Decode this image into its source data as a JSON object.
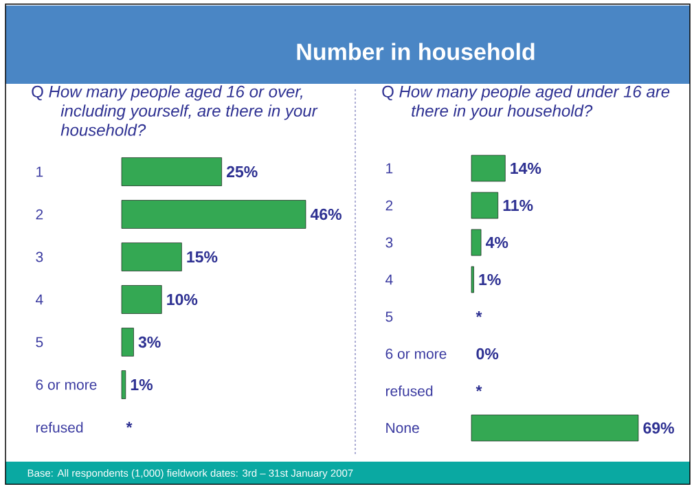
{
  "chart_data": [
    {
      "type": "bar",
      "orientation": "horizontal",
      "title": "Number in household",
      "subtitle": "Q *How many people aged 16 or over, including yourself, are there in your household?*",
      "categories": [
        "1",
        "2",
        "3",
        "4",
        "5",
        "6 or more",
        "refused"
      ],
      "values": [
        25,
        46,
        15,
        10,
        3,
        1,
        null
      ],
      "value_labels": [
        "25%",
        "46%",
        "15%",
        "10%",
        "3%",
        "1%",
        "*"
      ],
      "color": "#34a853",
      "tick_labels": "y",
      "annotations": [
        "Base: All respondents (1,000) fieldwork dates: 3rd – 31st January 2007"
      ]
    },
    {
      "type": "bar",
      "orientation": "horizontal",
      "subtitle": "Q *How many people aged under 16 are there in your household?*",
      "categories": [
        "1",
        "2",
        "3",
        "4",
        "5",
        "6 or more",
        "refused",
        "None"
      ],
      "values": [
        14,
        11,
        4,
        1,
        null,
        0,
        null,
        69
      ],
      "value_labels": [
        "14%",
        "11%",
        "4%",
        "1%",
        "*",
        "0%",
        "*",
        "69%"
      ],
      "color": "#34a853",
      "tick_labels": "y"
    }
  ]
}
